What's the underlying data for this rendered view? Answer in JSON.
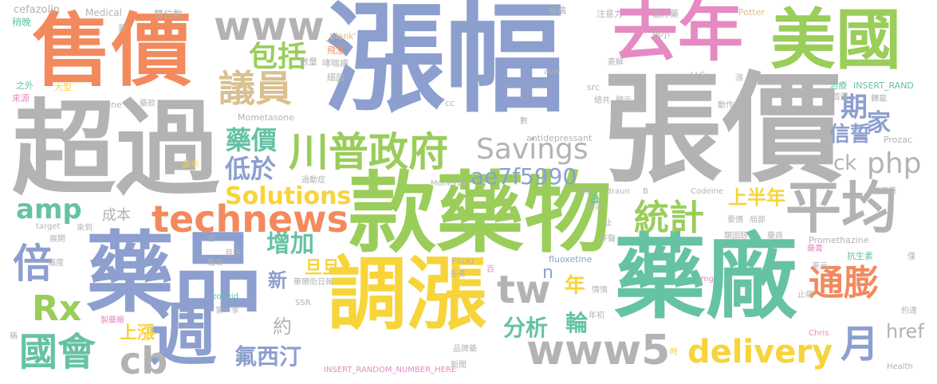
{
  "palette": {
    "orange": "#F28A5E",
    "blue": "#8C9FCF",
    "green": "#9ACD5A",
    "gray": "#B3B3B3",
    "pink": "#E68AC3",
    "tan": "#D9C090",
    "teal": "#66C2A5",
    "yellow": "#F7D43A"
  },
  "words": [
    {
      "text": "漲幅",
      "color": "blue",
      "size": 150
    },
    {
      "text": "張價",
      "color": "gray",
      "size": 150
    },
    {
      "text": "超過",
      "color": "gray",
      "size": 130
    },
    {
      "text": "款藥物",
      "color": "green",
      "size": 110
    },
    {
      "text": "藥廠",
      "color": "teal",
      "size": 115
    },
    {
      "text": "藥品",
      "color": "blue",
      "size": 110
    },
    {
      "text": "調漲",
      "color": "yellow",
      "size": 100
    },
    {
      "text": "售價",
      "color": "orange",
      "size": 100
    },
    {
      "text": "去年",
      "color": "pink",
      "size": 82
    },
    {
      "text": "美國",
      "color": "green",
      "size": 82
    },
    {
      "text": "週",
      "color": "blue",
      "size": 86
    },
    {
      "text": "平均",
      "color": "gray",
      "size": 70
    },
    {
      "text": "川普政府",
      "color": "green",
      "size": 50
    },
    {
      "text": "technews",
      "color": "orange",
      "size": 46
    },
    {
      "text": "www5",
      "color": "gray",
      "size": 52
    },
    {
      "text": "www",
      "color": "gray",
      "size": 50
    },
    {
      "text": "tw",
      "color": "gray",
      "size": 48
    },
    {
      "text": "議員",
      "color": "tan",
      "size": 46
    },
    {
      "text": "統計",
      "color": "green",
      "size": 44
    },
    {
      "text": "倍",
      "color": "blue",
      "size": 50
    },
    {
      "text": "國會",
      "color": "teal",
      "size": 48
    },
    {
      "text": "Rx",
      "color": "green",
      "size": 44
    },
    {
      "text": "cb",
      "color": "gray",
      "size": 46
    },
    {
      "text": "通膨",
      "color": "orange",
      "size": 44
    },
    {
      "text": "月",
      "color": "blue",
      "size": 48
    },
    {
      "text": "delivery",
      "color": "yellow",
      "size": 40
    },
    {
      "text": "Savings",
      "color": "gray",
      "size": 36
    },
    {
      "text": "php",
      "color": "gray",
      "size": 36
    },
    {
      "text": "amp",
      "color": "teal",
      "size": 34
    },
    {
      "text": "包括",
      "color": "green",
      "size": 36
    },
    {
      "text": "期",
      "color": "blue",
      "size": 34
    },
    {
      "text": "家",
      "color": "blue",
      "size": 30
    },
    {
      "text": "藥價",
      "color": "teal",
      "size": 32
    },
    {
      "text": "低於",
      "color": "blue",
      "size": 32
    },
    {
      "text": "Solutions",
      "color": "yellow",
      "size": 30
    },
    {
      "text": "ae7f5990",
      "color": "blue",
      "size": 28
    },
    {
      "text": "增加",
      "color": "teal",
      "size": 30
    },
    {
      "text": "信誓",
      "color": "blue",
      "size": 26
    },
    {
      "text": "ck",
      "color": "gray",
      "size": 26
    },
    {
      "text": "上半年",
      "color": "yellow",
      "size": 24
    },
    {
      "text": "分析",
      "color": "teal",
      "size": 28
    },
    {
      "text": "輪",
      "color": "teal",
      "size": 28
    },
    {
      "text": "氟西汀",
      "color": "blue",
      "size": 28
    },
    {
      "text": "年",
      "color": "yellow",
      "size": 26
    },
    {
      "text": "旦旦",
      "color": "yellow",
      "size": 22
    },
    {
      "text": "新",
      "color": "blue",
      "size": 24
    },
    {
      "text": "約",
      "color": "gray",
      "size": 24
    },
    {
      "text": "href",
      "color": "gray",
      "size": 24
    },
    {
      "text": "上漲",
      "color": "yellow",
      "size": 22
    },
    {
      "text": "成本",
      "color": "gray",
      "size": 18
    },
    {
      "text": "a",
      "color": "teal",
      "size": 20
    },
    {
      "text": "n",
      "color": "blue",
      "size": 22
    },
    {
      "text": "cefazolin",
      "color": "gray",
      "size": 13
    },
    {
      "text": "稍晚",
      "color": "teal",
      "size": 12
    },
    {
      "text": "Medical",
      "color": "gray",
      "size": 12
    },
    {
      "text": "雙位數",
      "color": "gray",
      "size": 12
    },
    {
      "text": "投稿",
      "color": "gray",
      "size": 11
    },
    {
      "text": "注意力",
      "color": "gray",
      "size": 11
    },
    {
      "text": "處方藥",
      "color": "gray",
      "size": 11
    },
    {
      "text": "Potter",
      "color": "tan",
      "size": 11
    },
    {
      "text": "要",
      "color": "gray",
      "size": 10
    },
    {
      "text": "_blank'",
      "color": "tan",
      "size": 11
    },
    {
      "text": "飛漲",
      "color": "orange",
      "size": 11
    },
    {
      "text": "縮小",
      "color": "gray",
      "size": 11
    },
    {
      "text": "哮喘病",
      "color": "gray",
      "size": 11
    },
    {
      "text": "數量",
      "color": "gray",
      "size": 11
    },
    {
      "text": "之外",
      "color": "teal",
      "size": 11
    },
    {
      "text": "大型",
      "color": "yellow",
      "size": 11
    },
    {
      "text": "細菌",
      "color": "gray",
      "size": 11
    },
    {
      "text": "avw",
      "color": "gray",
      "size": 10
    },
    {
      "text": "菱解",
      "color": "gray",
      "size": 10
    },
    {
      "text": "LLC",
      "color": "gray",
      "size": 10
    },
    {
      "text": "漲",
      "color": "gray",
      "size": 10
    },
    {
      "text": "治療",
      "color": "teal",
      "size": 11
    },
    {
      "text": "INSERT_RAND",
      "color": "teal",
      "size": 11
    },
    {
      "text": "來源",
      "color": "pink",
      "size": 11
    },
    {
      "text": "src",
      "color": "gray",
      "size": 11
    },
    {
      "text": "總共",
      "color": "gray",
      "size": 10
    },
    {
      "text": "顯示",
      "color": "gray",
      "size": 10
    },
    {
      "text": "首圖",
      "color": "gray",
      "size": 10
    },
    {
      "text": "轉載",
      "color": "gray",
      "size": 10
    },
    {
      "text": "Guanfacine",
      "color": "gray",
      "size": 11
    },
    {
      "text": "cc",
      "color": "gray",
      "size": 11
    },
    {
      "text": "動作",
      "color": "gray",
      "size": 10
    },
    {
      "text": "藥款",
      "color": "gray",
      "size": 10
    },
    {
      "text": "Mometasone",
      "color": "gray",
      "size": 11
    },
    {
      "text": "數",
      "color": "gray",
      "size": 10
    },
    {
      "text": "antidepressant",
      "color": "gray",
      "size": 11
    },
    {
      "text": "Prozac",
      "color": "gray",
      "size": 11
    },
    {
      "text": "並未",
      "color": "yellow",
      "size": 11
    },
    {
      "text": "過動症",
      "color": "gray",
      "size": 10
    },
    {
      "text": "MoneyDJ",
      "color": "gray",
      "size": 10
    },
    {
      "text": "本文",
      "color": "gray",
      "size": 10
    },
    {
      "text": "Braun",
      "color": "gray",
      "size": 10
    },
    {
      "text": "B",
      "color": "gray",
      "size": 10
    },
    {
      "text": "Codeine",
      "color": "gray",
      "size": 10
    },
    {
      "text": "常用藥",
      "color": "gray",
      "size": 10
    },
    {
      "text": "target",
      "color": "gray",
      "size": 10
    },
    {
      "text": "來到",
      "color": "gray",
      "size": 10
    },
    {
      "text": "感染",
      "color": "gray",
      "size": 10
    },
    {
      "text": "要價",
      "color": "gray",
      "size": 10
    },
    {
      "text": "局部",
      "color": "gray",
      "size": 10
    },
    {
      "text": "展開",
      "color": "gray",
      "size": 10
    },
    {
      "text": "日",
      "color": "gray",
      "size": 10
    },
    {
      "text": "月份",
      "color": "gray",
      "size": 10
    },
    {
      "text": "止",
      "color": "gray",
      "size": 10
    },
    {
      "text": "類固醇",
      "color": "gray",
      "size": 10
    },
    {
      "text": "藥商",
      "color": "gray",
      "size": 10
    },
    {
      "text": "坪聲",
      "color": "gray",
      "size": 10
    },
    {
      "text": "Promethazine",
      "color": "gray",
      "size": 11
    },
    {
      "text": "幅度",
      "color": "gray",
      "size": 10
    },
    {
      "text": "報導",
      "color": "gray",
      "size": 10
    },
    {
      "text": "Flickr",
      "color": "gray",
      "size": 11
    },
    {
      "text": "百",
      "color": "pink",
      "size": 10
    },
    {
      "text": "fluoxetine",
      "color": "blue",
      "size": 11
    },
    {
      "text": "藥膏",
      "color": "pink",
      "size": 10
    },
    {
      "text": "抗生素",
      "color": "teal",
      "size": 11
    },
    {
      "text": "僅",
      "color": "gray",
      "size": 10
    },
    {
      "text": "多達",
      "color": "gray",
      "size": 10
    },
    {
      "text": "美元",
      "color": "gray",
      "size": 10
    },
    {
      "text": "img",
      "color": "pink",
      "size": 10
    },
    {
      "text": "華爾街日報",
      "color": "gray",
      "size": 10
    },
    {
      "text": "情憤",
      "color": "gray",
      "size": 10
    },
    {
      "text": "zoneid",
      "color": "teal",
      "size": 10
    },
    {
      "text": "SSR",
      "color": "gray",
      "size": 10
    },
    {
      "text": "止痛",
      "color": "gray",
      "size": 10
    },
    {
      "text": "約達",
      "color": "gray",
      "size": 10
    },
    {
      "text": "製藥廠",
      "color": "pink",
      "size": 10
    },
    {
      "text": "第一季",
      "color": "gray",
      "size": 10
    },
    {
      "text": "年初",
      "color": "gray",
      "size": 10
    },
    {
      "text": "稱",
      "color": "gray",
      "size": 10
    },
    {
      "text": "Chris",
      "color": "pink",
      "size": 10
    },
    {
      "text": "品牌藥",
      "color": "gray",
      "size": 10
    },
    {
      "text": "時",
      "color": "yellow",
      "size": 10
    },
    {
      "text": "INSERT_RANDOM_NUMBER_HERE'",
      "color": "pink",
      "size": 10
    },
    {
      "text": "新聞",
      "color": "gray",
      "size": 10
    },
    {
      "text": "Health",
      "color": "gray",
      "size": 10
    }
  ]
}
